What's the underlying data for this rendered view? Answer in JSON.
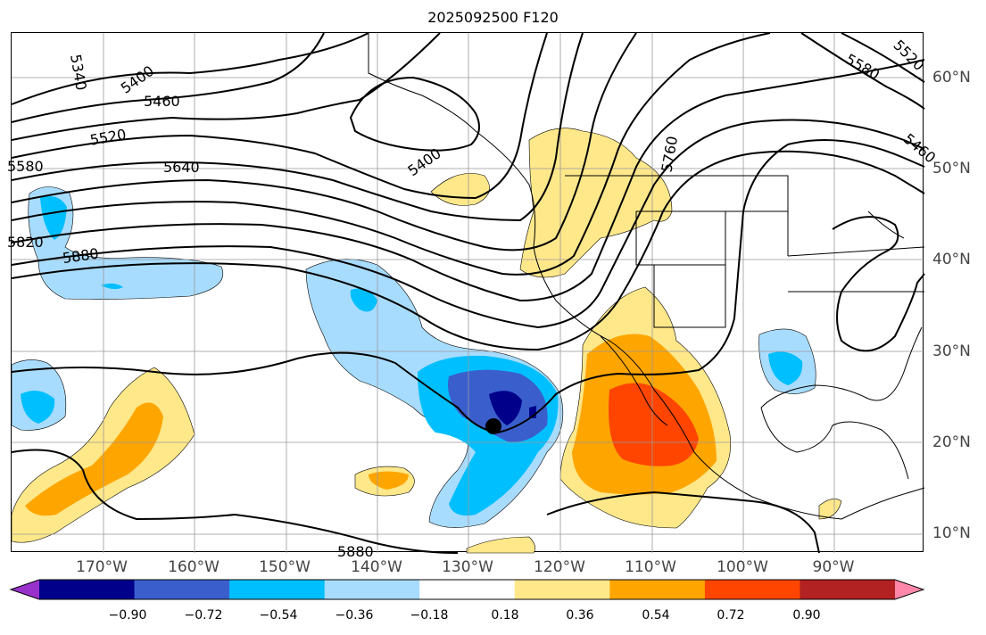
{
  "title": "2025092500 F120",
  "lon_labels": [
    "170°W",
    "160°W",
    "150°W",
    "140°W",
    "130°W",
    "120°W",
    "110°W",
    "100°W",
    "90°W"
  ],
  "lat_labels": [
    "60°N",
    "50°N",
    "40°N",
    "30°N",
    "20°N",
    "10°N"
  ],
  "contour_labels": [
    "5340",
    "5400",
    "5460",
    "5520",
    "5580",
    "5640",
    "5820",
    "5880",
    "5400",
    "5760",
    "5880",
    "5580",
    "5520",
    "5460"
  ],
  "colorbar": {
    "ticks": [
      "−0.90",
      "−0.72",
      "−0.54",
      "−0.36",
      "−0.18",
      "0.18",
      "0.36",
      "0.54",
      "0.72",
      "0.90"
    ],
    "colors": [
      "#9932cc",
      "#00008b",
      "#3a5fcd",
      "#00bfff",
      "#a8dcff",
      "#ffffff",
      "#ffe88a",
      "#ffa500",
      "#ff4500",
      "#b22222",
      "#ff88aa"
    ]
  },
  "marker": "storm-center-dot"
}
